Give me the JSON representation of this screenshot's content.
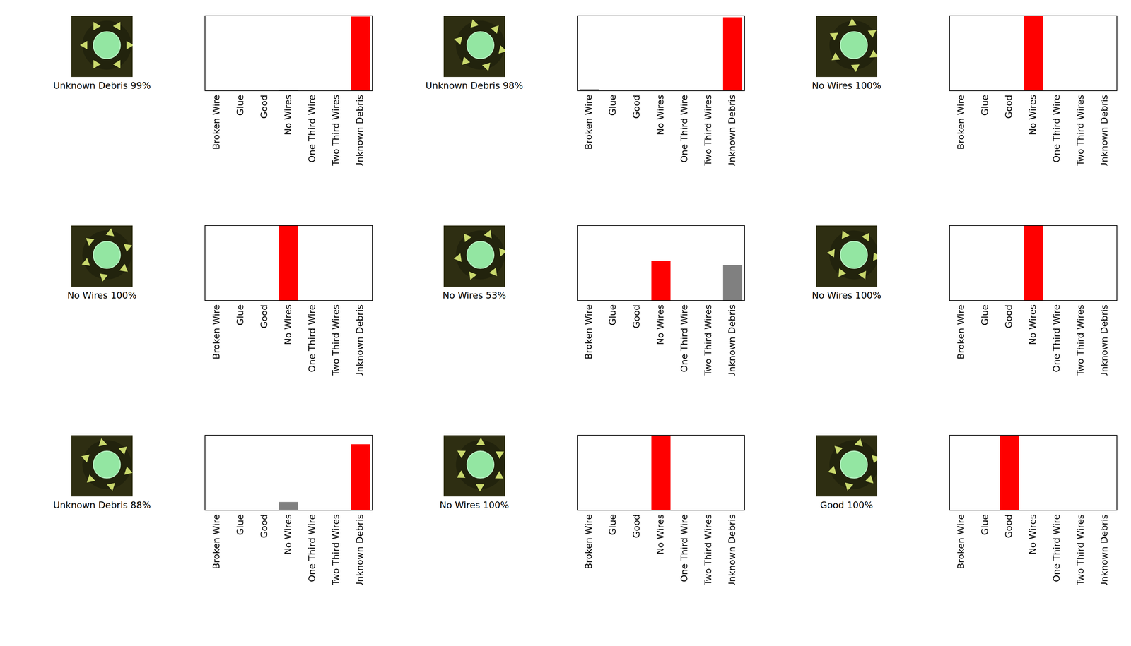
{
  "chart_data": [
    {
      "type": "bar",
      "title": "Unknown Debris 99%",
      "categories": [
        "Broken Wire",
        "Glue",
        "Good",
        "No Wires",
        "One Third Wire",
        "Two Third Wires",
        "Unknown Debris"
      ],
      "values": [
        0,
        0,
        0,
        1,
        0,
        0,
        99
      ],
      "colors": [
        "#808080",
        "#808080",
        "#808080",
        "#808080",
        "#808080",
        "#808080",
        "#ff0000"
      ],
      "ylim": [
        0,
        100
      ],
      "grid": false,
      "tick_labels": "x"
    },
    {
      "type": "bar",
      "title": "Unknown Debris 98%",
      "categories": [
        "Broken Wire",
        "Glue",
        "Good",
        "No Wires",
        "One Third Wire",
        "Two Third Wires",
        "Unknown Debris"
      ],
      "values": [
        2,
        0,
        0,
        0,
        0,
        0,
        98
      ],
      "colors": [
        "#808080",
        "#808080",
        "#808080",
        "#808080",
        "#808080",
        "#808080",
        "#ff0000"
      ],
      "ylim": [
        0,
        100
      ],
      "grid": false,
      "tick_labels": "x"
    },
    {
      "type": "bar",
      "title": "No Wires 100%",
      "categories": [
        "Broken Wire",
        "Glue",
        "Good",
        "No Wires",
        "One Third Wire",
        "Two Third Wires",
        "Unknown Debris"
      ],
      "values": [
        0,
        0,
        0,
        100,
        0,
        0,
        0
      ],
      "colors": [
        "#808080",
        "#808080",
        "#808080",
        "#ff0000",
        "#808080",
        "#808080",
        "#808080"
      ],
      "ylim": [
        0,
        100
      ],
      "grid": false,
      "tick_labels": "x"
    },
    {
      "type": "bar",
      "title": "No Wires 100%",
      "categories": [
        "Broken Wire",
        "Glue",
        "Good",
        "No Wires",
        "One Third Wire",
        "Two Third Wires",
        "Unknown Debris"
      ],
      "values": [
        0,
        0,
        0,
        100,
        0,
        0,
        0
      ],
      "colors": [
        "#808080",
        "#808080",
        "#808080",
        "#ff0000",
        "#808080",
        "#808080",
        "#808080"
      ],
      "ylim": [
        0,
        100
      ],
      "grid": false,
      "tick_labels": "x"
    },
    {
      "type": "bar",
      "title": "No Wires 53%",
      "categories": [
        "Broken Wire",
        "Glue",
        "Good",
        "No Wires",
        "One Third Wire",
        "Two Third Wires",
        "Unknown Debris"
      ],
      "values": [
        0,
        0,
        0,
        53,
        0,
        0,
        47
      ],
      "colors": [
        "#808080",
        "#808080",
        "#808080",
        "#ff0000",
        "#808080",
        "#808080",
        "#808080"
      ],
      "ylim": [
        0,
        100
      ],
      "grid": false,
      "tick_labels": "x"
    },
    {
      "type": "bar",
      "title": "No Wires 100%",
      "categories": [
        "Broken Wire",
        "Glue",
        "Good",
        "No Wires",
        "One Third Wire",
        "Two Third Wires",
        "Unknown Debris"
      ],
      "values": [
        0,
        0,
        0,
        100,
        0,
        0,
        0
      ],
      "colors": [
        "#808080",
        "#808080",
        "#808080",
        "#ff0000",
        "#808080",
        "#808080",
        "#808080"
      ],
      "ylim": [
        0,
        100
      ],
      "grid": false,
      "tick_labels": "x"
    },
    {
      "type": "bar",
      "title": "Unknown Debris 88%",
      "categories": [
        "Broken Wire",
        "Glue",
        "Good",
        "No Wires",
        "One Third Wire",
        "Two Third Wires",
        "Unknown Debris"
      ],
      "values": [
        0,
        0,
        0,
        11,
        0,
        0,
        88
      ],
      "colors": [
        "#808080",
        "#808080",
        "#808080",
        "#808080",
        "#808080",
        "#808080",
        "#ff0000"
      ],
      "ylim": [
        0,
        100
      ],
      "grid": false,
      "tick_labels": "x"
    },
    {
      "type": "bar",
      "title": "No Wires 100%",
      "categories": [
        "Broken Wire",
        "Glue",
        "Good",
        "No Wires",
        "One Third Wire",
        "Two Third Wires",
        "Unknown Debris"
      ],
      "values": [
        0,
        0,
        0,
        100,
        0,
        0,
        0
      ],
      "colors": [
        "#808080",
        "#808080",
        "#808080",
        "#ff0000",
        "#808080",
        "#808080",
        "#808080"
      ],
      "ylim": [
        0,
        100
      ],
      "grid": false,
      "tick_labels": "x"
    },
    {
      "type": "bar",
      "title": "Good 100%",
      "categories": [
        "Broken Wire",
        "Glue",
        "Good",
        "No Wires",
        "One Third Wire",
        "Two Third Wires",
        "Unknown Debris"
      ],
      "values": [
        0,
        0,
        100,
        0,
        0,
        0,
        0
      ],
      "colors": [
        "#808080",
        "#808080",
        "#ff0000",
        "#808080",
        "#808080",
        "#808080",
        "#808080"
      ],
      "ylim": [
        0,
        100
      ],
      "grid": false,
      "tick_labels": "x"
    }
  ]
}
